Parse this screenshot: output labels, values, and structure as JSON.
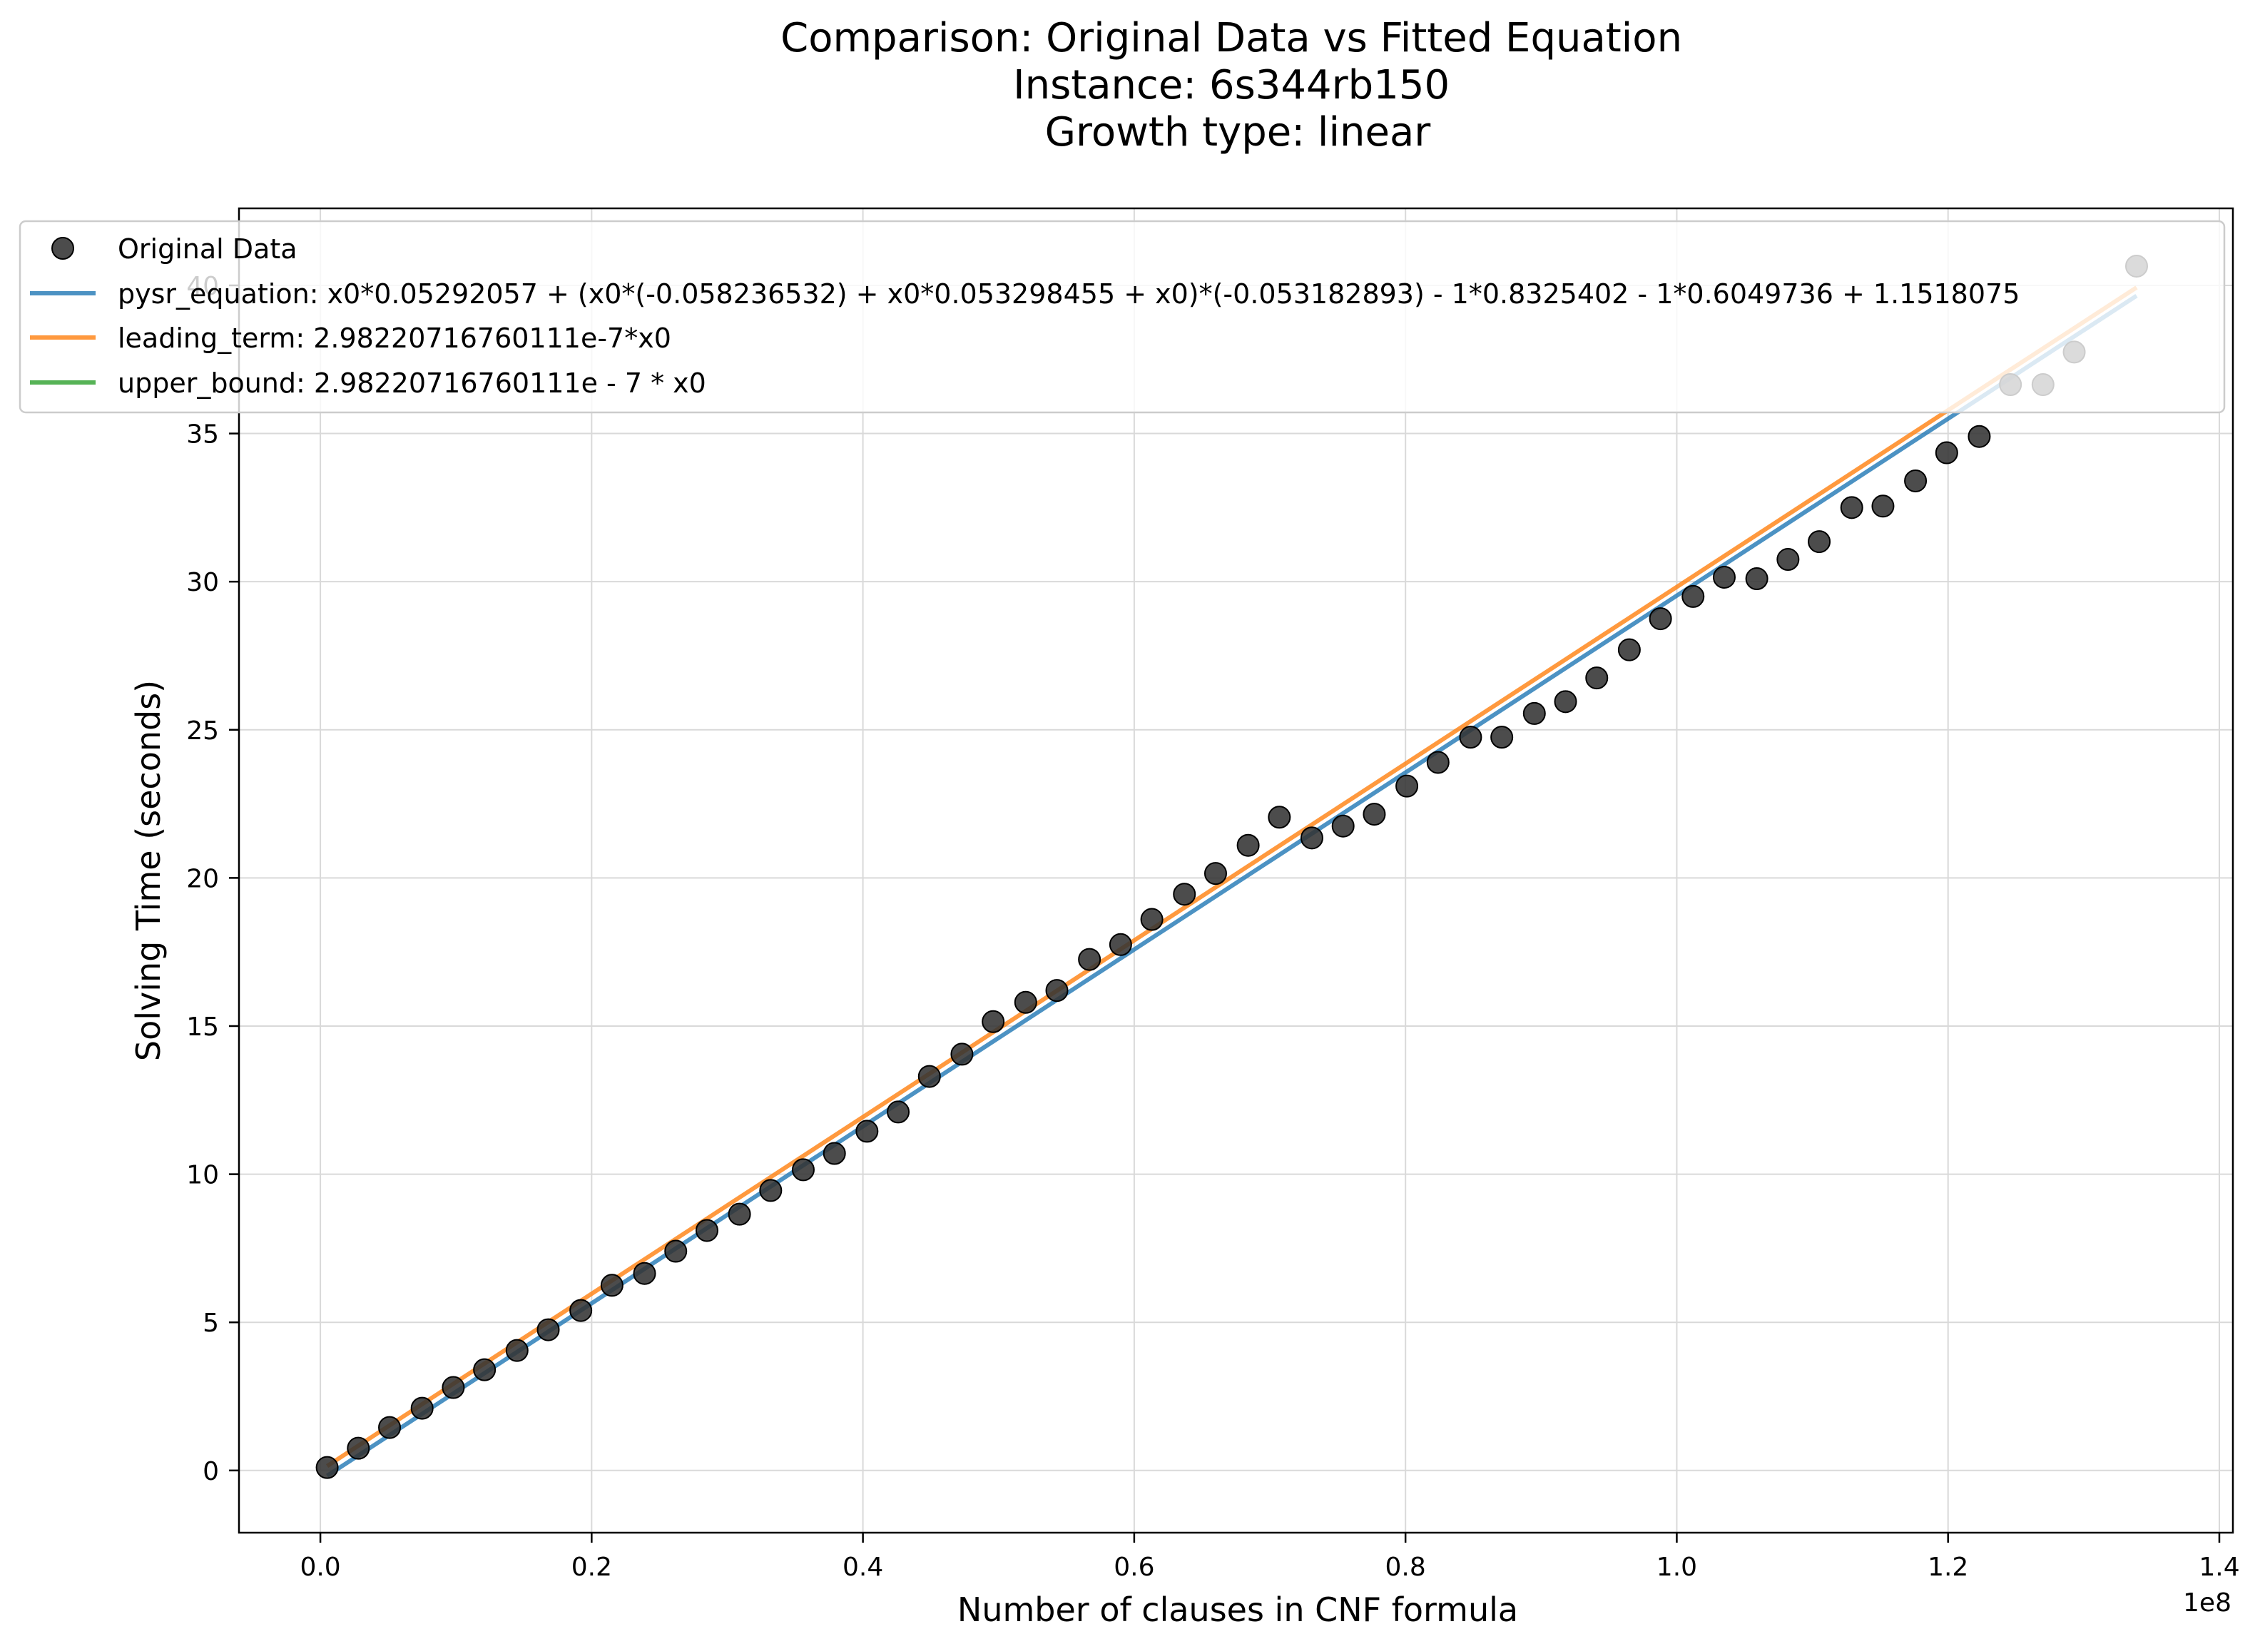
{
  "chart_data": {
    "type": "scatter",
    "title": [
      "Comparison: Original Data vs Fitted Equation",
      "Instance: 6s344rb150",
      "Growth type: linear"
    ],
    "xlabel": "Number of clauses in CNF formula",
    "ylabel": "Solving Time (seconds)",
    "x_offset_label": "1e8",
    "xlim": [
      -0.06,
      1.41
    ],
    "ylim": [
      -2.1,
      42.6
    ],
    "x_ticks": [
      0.0,
      0.2,
      0.4,
      0.6,
      0.8,
      1.0,
      1.2,
      1.4
    ],
    "x_tick_labels": [
      "0.0",
      "0.2",
      "0.4",
      "0.6",
      "0.8",
      "1.0",
      "1.2",
      "1.4"
    ],
    "y_ticks": [
      0,
      5,
      10,
      15,
      20,
      25,
      30,
      35,
      40
    ],
    "y_tick_labels": [
      "0",
      "5",
      "10",
      "15",
      "20",
      "25",
      "30",
      "35",
      "40"
    ],
    "grid": true,
    "legend_position": "top",
    "scatter": {
      "name": "Original Data",
      "color": "#333333",
      "x": [
        0.005,
        0.028,
        0.051,
        0.075,
        0.098,
        0.121,
        0.145,
        0.168,
        0.192,
        0.215,
        0.239,
        0.262,
        0.285,
        0.309,
        0.332,
        0.356,
        0.379,
        0.403,
        0.426,
        0.449,
        0.473,
        0.496,
        0.52,
        0.543,
        0.567,
        0.59,
        0.613,
        0.637,
        0.66,
        0.684,
        0.707,
        0.731,
        0.754,
        0.777,
        0.801,
        0.824,
        0.848,
        0.871,
        0.895,
        0.918,
        0.941,
        0.965,
        0.988,
        1.012,
        1.035,
        1.059,
        1.082,
        1.105,
        1.129,
        1.152,
        1.176,
        1.199,
        1.223,
        1.246,
        1.27,
        1.293,
        1.339
      ],
      "y": [
        0.1,
        0.75,
        1.45,
        2.1,
        2.8,
        3.4,
        4.05,
        4.75,
        5.4,
        6.25,
        6.65,
        7.4,
        8.1,
        8.65,
        9.45,
        10.15,
        10.7,
        11.45,
        12.1,
        13.3,
        14.05,
        15.15,
        15.8,
        16.2,
        17.25,
        17.75,
        18.6,
        19.45,
        20.15,
        21.1,
        22.05,
        21.35,
        21.75,
        22.15,
        23.1,
        23.9,
        24.75,
        24.75,
        25.55,
        25.95,
        26.75,
        27.7,
        28.75,
        29.5,
        30.15,
        30.1,
        30.75,
        31.35,
        32.5,
        32.55,
        33.4,
        34.35,
        34.9,
        36.65,
        36.65,
        37.75,
        40.65
      ]
    },
    "series": [
      {
        "name": "pysr_equation: x0*0.05292057 + (x0*(-0.058236532) + x0*0.053298455 + x0)*(-0.053182893) - 1*0.8325402 - 1*0.6049736 + 1.1518075",
        "color": "#1f77b4",
        "x": [
          0.005,
          1.339
        ],
        "y": [
          -0.18,
          39.65
        ]
      },
      {
        "name": "leading_term: 2.98220716760111e-7*x0",
        "color": "#ff7f0e",
        "x": [
          0.005,
          1.339
        ],
        "y": [
          0.15,
          39.93
        ]
      },
      {
        "name": "upper_bound: 2.98220716760111e - 7 * x0",
        "color": "#2ca02c",
        "x": [
          0.005,
          1.339
        ],
        "y": [
          0.15,
          39.93
        ]
      }
    ]
  }
}
